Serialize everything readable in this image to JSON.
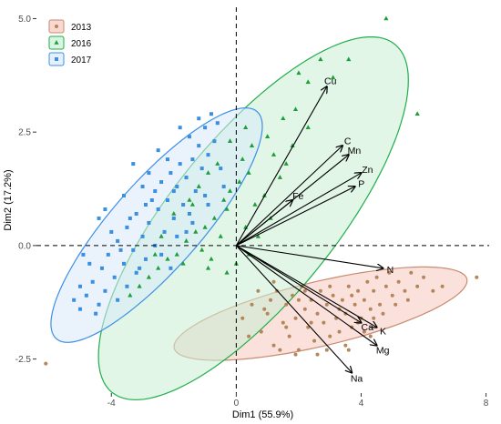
{
  "chart_data": {
    "type": "scatter",
    "title": "",
    "xlabel": "Dim1 (55.9%)",
    "ylabel": "Dim2 (17.2%)",
    "xlim": [
      -6.4,
      8.1
    ],
    "ylim": [
      -3.25,
      5.25
    ],
    "x_ticks": [
      -4,
      0,
      4,
      8
    ],
    "x_tick_labels": [
      "-4",
      "0",
      "4",
      "8"
    ],
    "y_ticks": [
      -2.5,
      0.0,
      2.5,
      5.0
    ],
    "y_tick_labels": [
      "-2.5",
      "0.0",
      "2.5",
      "5.0"
    ],
    "grid": false,
    "reference_lines": {
      "x": 0,
      "y": 0,
      "style": "dashed"
    },
    "legend": {
      "position": "top-left"
    },
    "series": [
      {
        "name": "2013",
        "marker": "circle",
        "point_color": "#b5865a",
        "ellipse_fill": "#f6c8bf",
        "ellipse_stroke": "#c98a6e",
        "ellipse": {
          "cx": 2.7,
          "cy": -1.5,
          "rx": 4.75,
          "ry": 0.72,
          "angle_deg": 9
        },
        "points": [
          [
            0.2,
            -1.6
          ],
          [
            0.5,
            -1.3
          ],
          [
            0.8,
            -1.9
          ],
          [
            1.0,
            -1.5
          ],
          [
            1.2,
            -2.2
          ],
          [
            1.3,
            -1.0
          ],
          [
            1.5,
            -1.7
          ],
          [
            1.6,
            -1.3
          ],
          [
            1.7,
            -2.0
          ],
          [
            1.8,
            -1.1
          ],
          [
            1.9,
            -1.6
          ],
          [
            2.0,
            -2.3
          ],
          [
            2.1,
            -0.9
          ],
          [
            2.2,
            -1.4
          ],
          [
            2.3,
            -1.8
          ],
          [
            2.4,
            -1.2
          ],
          [
            2.5,
            -2.1
          ],
          [
            2.6,
            -1.5
          ],
          [
            2.7,
            -1.0
          ],
          [
            2.8,
            -1.7
          ],
          [
            2.9,
            -1.3
          ],
          [
            3.0,
            -2.0
          ],
          [
            3.1,
            -1.1
          ],
          [
            3.2,
            -1.6
          ],
          [
            3.3,
            -1.9
          ],
          [
            3.4,
            -1.2
          ],
          [
            3.5,
            -1.5
          ],
          [
            3.6,
            -0.9
          ],
          [
            3.7,
            -1.8
          ],
          [
            3.8,
            -1.3
          ],
          [
            3.9,
            -1.0
          ],
          [
            4.0,
            -1.6
          ],
          [
            4.1,
            -1.2
          ],
          [
            4.2,
            -0.8
          ],
          [
            4.3,
            -1.4
          ],
          [
            4.4,
            -1.0
          ],
          [
            4.5,
            -0.7
          ],
          [
            4.6,
            -1.3
          ],
          [
            4.8,
            -0.9
          ],
          [
            5.0,
            -1.1
          ],
          [
            5.2,
            -0.8
          ],
          [
            5.4,
            -1.0
          ],
          [
            5.6,
            -0.6
          ],
          [
            5.8,
            -0.9
          ],
          [
            6.0,
            -0.7
          ],
          [
            1.1,
            -1.2
          ],
          [
            1.4,
            -2.3
          ],
          [
            2.0,
            -1.2
          ],
          [
            2.4,
            -1.7
          ],
          [
            3.0,
            -0.9
          ],
          [
            3.3,
            -1.4
          ],
          [
            3.7,
            -1.1
          ],
          [
            4.1,
            -1.9
          ],
          [
            4.4,
            -1.6
          ],
          [
            0.7,
            -1.0
          ],
          [
            1.9,
            -2.4
          ],
          [
            2.9,
            -2.3
          ],
          [
            4.7,
            -1.5
          ],
          [
            5.1,
            -1.3
          ],
          [
            6.3,
            -1.0
          ],
          [
            3.5,
            -2.2
          ],
          [
            2.2,
            -1.0
          ],
          [
            1.6,
            -1.8
          ],
          [
            0.9,
            -1.4
          ],
          [
            3.9,
            -1.7
          ],
          [
            4.9,
            -0.6
          ],
          [
            5.5,
            -1.2
          ],
          [
            6.6,
            -0.9
          ],
          [
            7.7,
            -0.7
          ],
          [
            -6.1,
            -2.6
          ],
          [
            0.4,
            -2.0
          ],
          [
            1.2,
            -0.8
          ],
          [
            2.6,
            -2.4
          ],
          [
            3.6,
            -2.3
          ],
          [
            4.3,
            -2.0
          ]
        ]
      },
      {
        "name": "2016",
        "marker": "triangle",
        "point_color": "#1e9e3a",
        "ellipse_fill": "#c9efd4",
        "ellipse_stroke": "#1fae4a",
        "ellipse": {
          "cx": 0.55,
          "cy": 0.6,
          "rx": 6.0,
          "ry": 2.15,
          "angle_deg": 37
        },
        "points": [
          [
            4.8,
            5.0
          ],
          [
            5.8,
            2.9
          ],
          [
            2.0,
            3.8
          ],
          [
            2.7,
            4.1
          ],
          [
            3.6,
            4.1
          ],
          [
            3.1,
            3.7
          ],
          [
            2.3,
            3.6
          ],
          [
            1.9,
            3.0
          ],
          [
            1.5,
            2.8
          ],
          [
            1.0,
            2.4
          ],
          [
            0.3,
            2.6
          ],
          [
            0.5,
            2.2
          ],
          [
            0.2,
            1.9
          ],
          [
            0.4,
            1.6
          ],
          [
            0.1,
            1.4
          ],
          [
            -0.2,
            1.2
          ],
          [
            -0.4,
            1.0
          ],
          [
            -0.3,
            0.8
          ],
          [
            -0.7,
            0.6
          ],
          [
            -1.0,
            0.4
          ],
          [
            -1.3,
            0.3
          ],
          [
            -1.6,
            0.1
          ],
          [
            -1.9,
            -0.2
          ],
          [
            -2.2,
            -0.3
          ],
          [
            -2.5,
            -0.5
          ],
          [
            -2.8,
            -0.7
          ],
          [
            -3.1,
            -0.9
          ],
          [
            -3.4,
            -1.1
          ],
          [
            -0.9,
            1.6
          ],
          [
            -1.2,
            1.3
          ],
          [
            -1.5,
            1.0
          ],
          [
            -0.6,
            1.8
          ],
          [
            0.6,
            0.9
          ],
          [
            0.9,
            1.1
          ],
          [
            1.1,
            0.6
          ],
          [
            0.3,
            0.4
          ],
          [
            -0.5,
            0.2
          ],
          [
            -1.1,
            -0.1
          ],
          [
            -1.7,
            -0.4
          ],
          [
            -0.8,
            -0.3
          ],
          [
            0.0,
            -0.4
          ],
          [
            0.7,
            0.2
          ],
          [
            1.4,
            1.5
          ],
          [
            1.8,
            2.2
          ],
          [
            1.2,
            2.0
          ],
          [
            -2.0,
            0.7
          ],
          [
            -2.4,
            0.2
          ],
          [
            -1.4,
            0.9
          ],
          [
            -0.2,
            2.3
          ],
          [
            2.3,
            2.6
          ],
          [
            -0.9,
            -0.5
          ],
          [
            -0.3,
            -0.6
          ],
          [
            0.4,
            -0.2
          ],
          [
            1.6,
            1.8
          ],
          [
            -2.6,
            -0.2
          ]
        ]
      },
      {
        "name": "2017",
        "marker": "square",
        "point_color": "#3a8fe0",
        "ellipse_fill": "#d9e9fa",
        "ellipse_stroke": "#3c8fe6",
        "ellipse": {
          "cx": -2.55,
          "cy": 0.45,
          "rx": 4.1,
          "ry": 1.15,
          "angle_deg": 36
        },
        "points": [
          [
            -0.8,
            2.9
          ],
          [
            -1.0,
            2.6
          ],
          [
            -0.7,
            2.3
          ],
          [
            -1.2,
            2.2
          ],
          [
            -1.5,
            2.4
          ],
          [
            -0.9,
            2.0
          ],
          [
            -1.4,
            1.9
          ],
          [
            -1.8,
            1.8
          ],
          [
            -1.1,
            1.7
          ],
          [
            -2.1,
            1.6
          ],
          [
            -1.6,
            1.5
          ],
          [
            -2.4,
            1.4
          ],
          [
            -1.9,
            1.3
          ],
          [
            -2.6,
            1.2
          ],
          [
            -1.3,
            1.2
          ],
          [
            -2.2,
            1.0
          ],
          [
            -2.9,
            0.9
          ],
          [
            -1.7,
            0.9
          ],
          [
            -2.5,
            0.8
          ],
          [
            -3.2,
            0.7
          ],
          [
            -2.0,
            0.6
          ],
          [
            -2.8,
            0.5
          ],
          [
            -3.5,
            0.4
          ],
          [
            -2.3,
            0.3
          ],
          [
            -3.0,
            0.2
          ],
          [
            -3.8,
            0.1
          ],
          [
            -2.6,
            0.0
          ],
          [
            -3.3,
            -0.1
          ],
          [
            -4.1,
            -0.2
          ],
          [
            -2.9,
            -0.3
          ],
          [
            -3.6,
            -0.4
          ],
          [
            -4.3,
            -0.5
          ],
          [
            -3.2,
            -0.6
          ],
          [
            -3.9,
            -0.7
          ],
          [
            -4.6,
            -0.8
          ],
          [
            -3.5,
            -0.9
          ],
          [
            -4.2,
            -1.0
          ],
          [
            -4.8,
            -1.1
          ],
          [
            -3.8,
            -1.2
          ],
          [
            -4.4,
            -1.3
          ],
          [
            -5.0,
            -0.9
          ],
          [
            -4.7,
            -0.4
          ],
          [
            -4.0,
            0.3
          ],
          [
            -3.4,
            0.6
          ],
          [
            -2.7,
            1.0
          ],
          [
            -2.0,
            1.2
          ],
          [
            -1.5,
            0.7
          ],
          [
            -1.9,
            0.2
          ],
          [
            -2.4,
            -0.2
          ],
          [
            -3.1,
            -0.5
          ],
          [
            -0.6,
            2.7
          ],
          [
            -1.2,
            2.8
          ],
          [
            -0.5,
            1.7
          ],
          [
            -0.4,
            1.3
          ],
          [
            -1.0,
            1.1
          ],
          [
            -1.4,
            0.5
          ],
          [
            -2.2,
            1.9
          ],
          [
            -2.8,
            1.6
          ],
          [
            -3.6,
            1.1
          ],
          [
            -4.4,
            0.6
          ],
          [
            -4.9,
            -0.2
          ],
          [
            -5.2,
            -1.2
          ],
          [
            -4.5,
            -1.5
          ],
          [
            -3.7,
            -0.1
          ],
          [
            -2.1,
            -0.5
          ],
          [
            -1.6,
            0.3
          ],
          [
            -0.9,
            0.9
          ],
          [
            -1.8,
            2.6
          ],
          [
            -3.0,
            1.3
          ],
          [
            -4.2,
            0.8
          ],
          [
            -2.5,
            2.1
          ],
          [
            -3.3,
            1.8
          ],
          [
            -5.0,
            -1.4
          ]
        ]
      }
    ],
    "variables": [
      {
        "name": "Cu",
        "x": 2.9,
        "y": 3.5
      },
      {
        "name": "C",
        "x": 3.4,
        "y": 2.2
      },
      {
        "name": "Mn",
        "x": 3.6,
        "y": 2.0
      },
      {
        "name": "Zn",
        "x": 4.0,
        "y": 1.6
      },
      {
        "name": "P",
        "x": 3.8,
        "y": 1.3
      },
      {
        "name": "Fe",
        "x": 1.8,
        "y": 1.0
      },
      {
        "name": "N",
        "x": 4.7,
        "y": -0.5
      },
      {
        "name": "Ca",
        "x": 4.0,
        "y": -1.7
      },
      {
        "name": "K",
        "x": 4.5,
        "y": -1.8
      },
      {
        "name": "Mg",
        "x": 4.5,
        "y": -2.2
      },
      {
        "name": "Na",
        "x": 3.7,
        "y": -2.8
      }
    ]
  }
}
